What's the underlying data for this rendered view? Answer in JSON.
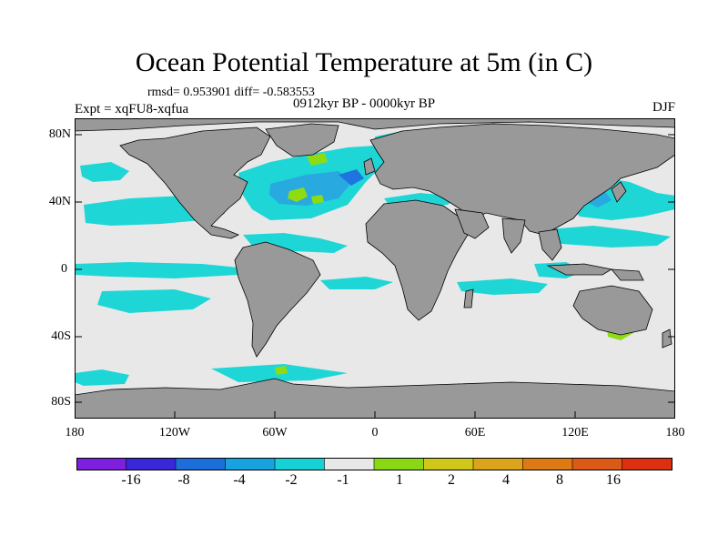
{
  "title": "Ocean Potential Temperature at 5m (in C)",
  "stats": "rmsd= 0.953901 diff= -0.583553",
  "experiment": "Expt = xqFU8-xqfua",
  "period": "0912kyr BP - 0000kyr BP",
  "season": "DJF",
  "lat_labels": [
    "80N",
    "40N",
    "0",
    "40S",
    "80S"
  ],
  "lon_labels": [
    "180",
    "120W",
    "60W",
    "0",
    "60E",
    "120E",
    "180"
  ],
  "colors": {
    "land": "#999999",
    "neutral": "#e8e8e8",
    "cyan": "#1fd6d6",
    "blue_light": "#28a9e0",
    "blue": "#1f75df",
    "green": "#8fdb12",
    "yellow": "#d8c817",
    "orange": "#dd9a10"
  },
  "colorbar": {
    "colors": [
      "#7e1fe0",
      "#3a28d8",
      "#1c6edc",
      "#16a3e0",
      "#17d2d4",
      "#e8e8e8",
      "#8ad715",
      "#cfc719",
      "#dca41a",
      "#de7a13",
      "#dd5a16",
      "#dd3010"
    ],
    "labels": [
      "-16",
      "-8",
      "-4",
      "-2",
      "-1",
      "1",
      "2",
      "4",
      "8",
      "16"
    ]
  }
}
